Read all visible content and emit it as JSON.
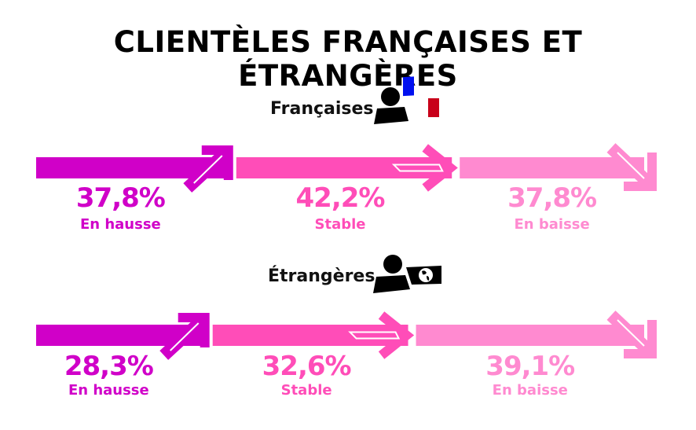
{
  "title": "Clientèles françaises et étrangères",
  "colors": {
    "hausse": "#d000c8",
    "stable": "#ff4db8",
    "baisse": "#ff8ad0"
  },
  "chart_data": [
    {
      "type": "bar",
      "title": "Françaises",
      "icon": "person-french-flag-icon",
      "categories": [
        "En hausse",
        "Stable",
        "En baisse"
      ],
      "values": [
        37.8,
        42.2,
        37.8
      ],
      "labels": [
        "37,8%",
        "42,2%",
        "37,8%"
      ]
    },
    {
      "type": "bar",
      "title": "Étrangères",
      "icon": "person-globe-icon",
      "categories": [
        "En hausse",
        "Stable",
        "En baisse"
      ],
      "values": [
        28.3,
        32.6,
        39.1
      ],
      "labels": [
        "28,3%",
        "32,6%",
        "39,1%"
      ]
    }
  ]
}
